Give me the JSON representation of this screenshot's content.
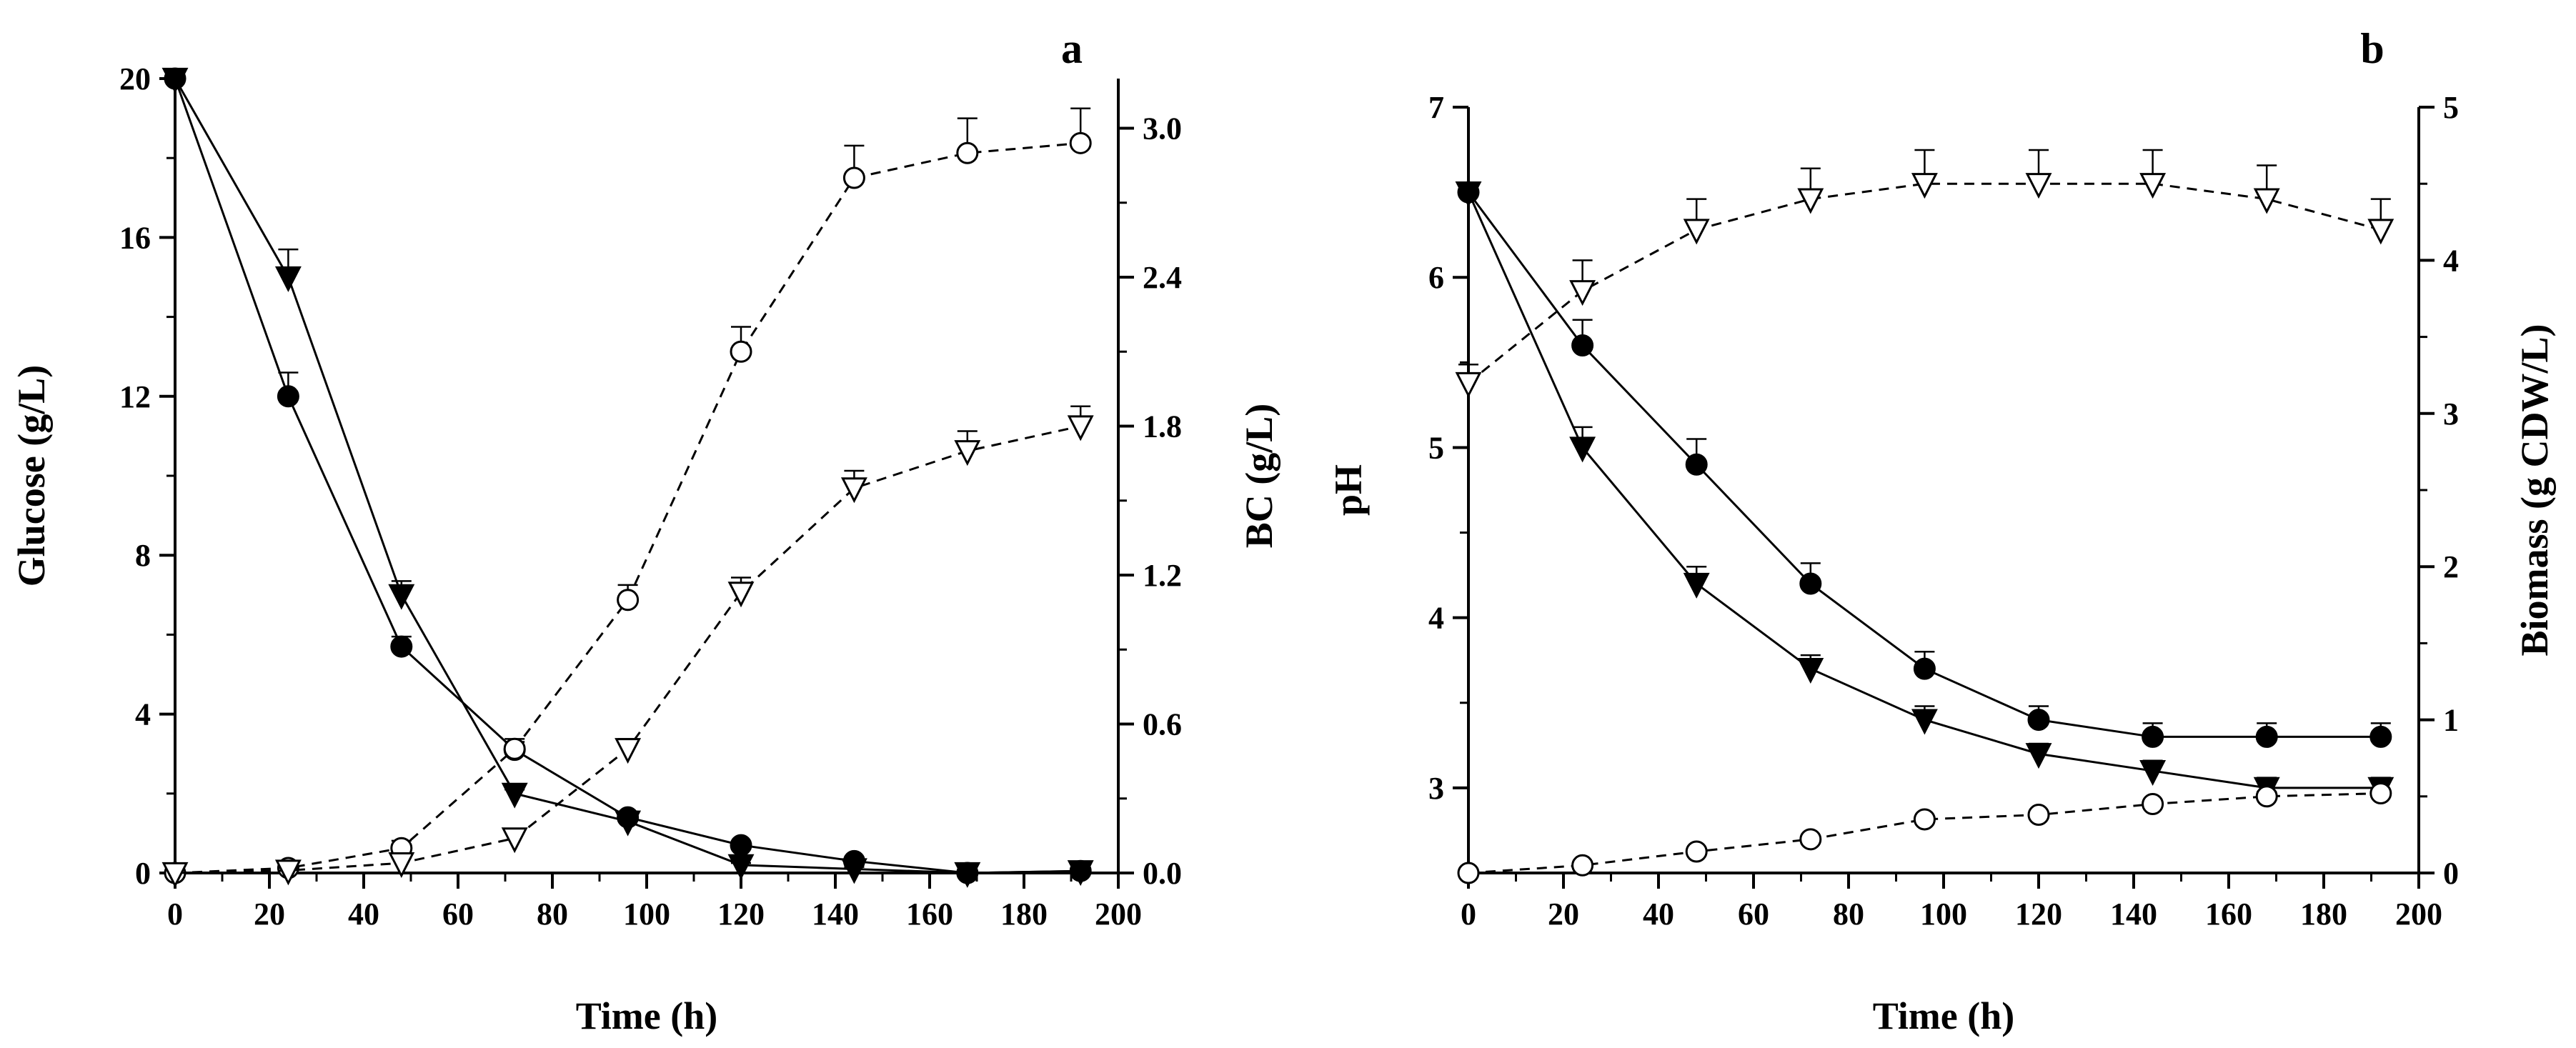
{
  "chart_data": [
    {
      "type": "line",
      "panel_label": "a",
      "xlabel": "Time (h)",
      "xlim": [
        0,
        200
      ],
      "xticks": [
        "0",
        "20",
        "40",
        "60",
        "80",
        "100",
        "120",
        "140",
        "160",
        "180",
        "200"
      ],
      "ylabel": "Glucose (g/L)",
      "ylim": [
        0,
        20
      ],
      "yticks": [
        "0",
        "4",
        "8",
        "12",
        "16",
        "20"
      ],
      "y2label": "BC (g/L)",
      "y2lim": [
        0,
        3.2
      ],
      "y2ticks": [
        "0.0",
        "0.6",
        "1.2",
        "1.8",
        "2.4",
        "3.0"
      ],
      "series": [
        {
          "name": "Glucose (filled circle)",
          "axis": "left",
          "marker": "circle",
          "fill": "filled",
          "line": "solid",
          "x": [
            0,
            24,
            48,
            72,
            96,
            120,
            144,
            168,
            192
          ],
          "values": [
            20,
            12,
            5.7,
            3.1,
            1.4,
            0.7,
            0.3,
            0.0,
            0.05
          ],
          "errors": [
            0,
            0.6,
            0.25,
            0.2,
            0.15,
            0.1,
            0.1,
            0.05,
            0.05
          ]
        },
        {
          "name": "Glucose (filled triangle)",
          "axis": "left",
          "marker": "triangle-down",
          "fill": "filled",
          "line": "solid",
          "x": [
            0,
            24,
            48,
            72,
            96,
            120,
            144,
            168,
            192
          ],
          "values": [
            20,
            15,
            7,
            2,
            1.3,
            0.2,
            0.1,
            0.0,
            0.05
          ],
          "errors": [
            0,
            0.7,
            0.35,
            0.1,
            0.1,
            0.05,
            0.05,
            0.05,
            0.05
          ]
        },
        {
          "name": "BC (open circle)",
          "axis": "right",
          "marker": "circle",
          "fill": "open",
          "line": "dashed",
          "x": [
            0,
            24,
            48,
            72,
            96,
            120,
            144,
            168,
            192
          ],
          "values": [
            0,
            0.02,
            0.1,
            0.5,
            1.1,
            2.1,
            2.8,
            2.9,
            2.94
          ],
          "errors": [
            0,
            0.01,
            0.03,
            0.04,
            0.06,
            0.1,
            0.13,
            0.14,
            0.14
          ]
        },
        {
          "name": "BC (open triangle)",
          "axis": "right",
          "marker": "triangle-down",
          "fill": "open",
          "line": "dashed",
          "x": [
            0,
            24,
            48,
            72,
            96,
            120,
            144,
            168,
            192
          ],
          "values": [
            0,
            0.01,
            0.04,
            0.14,
            0.5,
            1.13,
            1.55,
            1.7,
            1.8
          ],
          "errors": [
            0,
            0.01,
            0.02,
            0.03,
            0.04,
            0.06,
            0.07,
            0.08,
            0.08
          ]
        }
      ]
    },
    {
      "type": "line",
      "panel_label": "b",
      "xlabel": "Time (h)",
      "xlim": [
        0,
        200
      ],
      "xticks": [
        "0",
        "20",
        "40",
        "60",
        "80",
        "100",
        "120",
        "140",
        "160",
        "180",
        "200"
      ],
      "ylabel": "pH",
      "ylim": [
        2.5,
        7
      ],
      "yticks": [
        "3",
        "4",
        "5",
        "6",
        "7"
      ],
      "y2label": "Biomass (g CDW/L)",
      "y2lim": [
        0,
        5
      ],
      "y2ticks": [
        "0",
        "1",
        "2",
        "3",
        "4",
        "5"
      ],
      "series": [
        {
          "name": "pH (filled circle)",
          "axis": "left",
          "marker": "circle",
          "fill": "filled",
          "line": "solid",
          "x": [
            0,
            24,
            48,
            72,
            96,
            120,
            144,
            168,
            192
          ],
          "values": [
            6.5,
            5.6,
            4.9,
            4.2,
            3.7,
            3.4,
            3.3,
            3.3,
            3.3
          ],
          "errors": [
            0,
            0.15,
            0.15,
            0.12,
            0.1,
            0.08,
            0.08,
            0.08,
            0.08
          ]
        },
        {
          "name": "pH (filled triangle)",
          "axis": "left",
          "marker": "triangle-down",
          "fill": "filled",
          "line": "solid",
          "x": [
            0,
            24,
            48,
            72,
            96,
            120,
            144,
            168,
            192
          ],
          "values": [
            6.5,
            5.0,
            4.2,
            3.7,
            3.4,
            3.2,
            3.1,
            3.0,
            3.0
          ],
          "errors": [
            0,
            0.12,
            0.1,
            0.08,
            0.08,
            0.06,
            0.06,
            0.06,
            0.06
          ]
        },
        {
          "name": "Biomass (open circle)",
          "axis": "right",
          "marker": "circle",
          "fill": "open",
          "line": "dashed",
          "x": [
            0,
            24,
            48,
            72,
            96,
            120,
            144,
            168,
            192
          ],
          "values": [
            0,
            0.05,
            0.14,
            0.22,
            0.35,
            0.38,
            0.45,
            0.5,
            0.52
          ],
          "errors": [
            0,
            0.01,
            0.01,
            0.01,
            0.02,
            0.02,
            0.02,
            0.03,
            0.08
          ]
        },
        {
          "name": "Biomass (open triangle)",
          "axis": "right",
          "marker": "triangle-down",
          "fill": "open",
          "line": "dashed",
          "x": [
            0,
            24,
            48,
            72,
            96,
            120,
            144,
            168,
            192
          ],
          "values": [
            3.2,
            3.8,
            4.2,
            4.4,
            4.5,
            4.5,
            4.5,
            4.4,
            4.2
          ],
          "errors": [
            0.12,
            0.2,
            0.2,
            0.2,
            0.22,
            0.22,
            0.22,
            0.22,
            0.2
          ]
        }
      ]
    }
  ]
}
